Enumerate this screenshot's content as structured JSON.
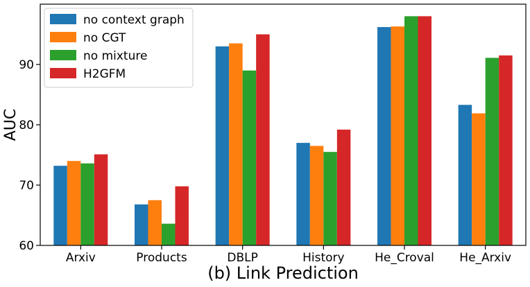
{
  "chart_data": {
    "type": "bar",
    "xlabel": "(b) Link Prediction",
    "ylabel": "AUC",
    "ylim": [
      60,
      100
    ],
    "yticks": [
      60,
      70,
      80,
      90
    ],
    "categories": [
      "Arxiv",
      "Products",
      "DBLP",
      "History",
      "He_Croval",
      "He_Arxiv"
    ],
    "series": [
      {
        "name": "no context graph",
        "color": "#1f77b4",
        "values": [
          73.2,
          66.8,
          93.0,
          77.0,
          96.2,
          83.3
        ]
      },
      {
        "name": "no CGT",
        "color": "#ff7f0e",
        "values": [
          74.0,
          67.5,
          93.5,
          76.5,
          96.3,
          81.9
        ]
      },
      {
        "name": "no mixture",
        "color": "#2ca02c",
        "values": [
          73.6,
          63.6,
          89.0,
          75.5,
          98.0,
          91.1
        ]
      },
      {
        "name": "H2GFM",
        "color": "#d62728",
        "values": [
          75.1,
          69.8,
          95.0,
          79.2,
          98.0,
          91.5
        ]
      }
    ],
    "legend": "top-left",
    "grid": false
  }
}
